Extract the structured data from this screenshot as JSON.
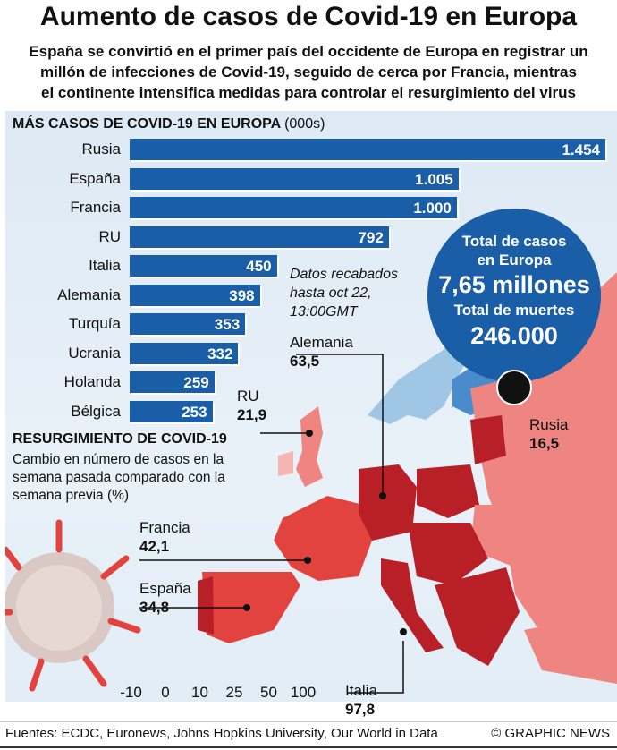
{
  "title": "Aumento de casos de Covid-19 en Europa",
  "subtitle_lines": [
    "España se convirtió en el primer país del occidente de Europa en registrar un",
    "millón de infecciones de Covid-19, seguido de cerca por Francia, mientras",
    "el continente intensifica medidas para controlar el resurgimiento del virus"
  ],
  "chart_data": [
    {
      "type": "bar",
      "orientation": "horizontal",
      "title": "MÁS CASOS DE COVID-19 EN EUROPA",
      "unit": "(000s)",
      "categories": [
        "Rusia",
        "España",
        "Francia",
        "RU",
        "Italia",
        "Alemania",
        "Turquía",
        "Ucrania",
        "Holanda",
        "Bélgica"
      ],
      "values": [
        1454,
        1005,
        1000,
        792,
        450,
        398,
        353,
        332,
        259,
        253
      ],
      "value_labels": [
        "1.454",
        "1.005",
        "1.000",
        "792",
        "450",
        "398",
        "353",
        "332",
        "259",
        "253"
      ],
      "bar_color": "#1a5ea8"
    },
    {
      "type": "choropleth",
      "title": "RESURGIMIENTO DE COVID-19",
      "description": "Cambio en número de casos en la semana pasada comparado con la semana previa (%)",
      "legend_ticks": [
        "-10",
        "0",
        "10",
        "25",
        "50",
        "100"
      ],
      "legend_colors": [
        "#4a8ccb",
        "#9fc6e4",
        "#f4b5b3",
        "#ee8581",
        "#e2433f",
        "#b81f26",
        "#6d0a10"
      ],
      "annotations": [
        {
          "country": "Alemania",
          "value": "63,5"
        },
        {
          "country": "RU",
          "value": "21,9"
        },
        {
          "country": "Rusia",
          "value": "16,5"
        },
        {
          "country": "Francia",
          "value": "42,1"
        },
        {
          "country": "España",
          "value": "34,8"
        },
        {
          "country": "Italia",
          "value": "97,8"
        }
      ]
    }
  ],
  "note": [
    "Datos recabados",
    "hasta oct 22,",
    "13:00GMT"
  ],
  "totals": {
    "cases_label_1": "Total de casos",
    "cases_label_2": "en Europa",
    "cases_value": "7,65 millones",
    "deaths_label": "Total de muertes",
    "deaths_value": "246.000"
  },
  "footer": {
    "sources": "Fuentes: ECDC, Euronews, Johns Hopkins University, Our World in Data",
    "credit": "© GRAPHIC NEWS"
  }
}
